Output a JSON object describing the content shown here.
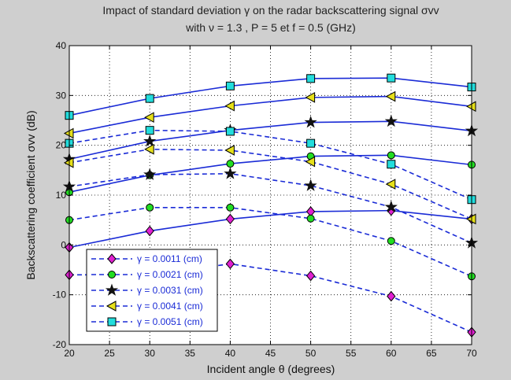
{
  "chart_data": {
    "type": "line",
    "title_line1": "Impact of standard deviation γ on the radar backscattering signal σvv",
    "title_line2": "with ν = 1.3 , P = 5 et f = 0.5 (GHz)",
    "xlabel": "Incident angle θ (degrees)",
    "ylabel": "Backscattering coefficient    σvv (dB)",
    "xlim": [
      20,
      70
    ],
    "ylim": [
      -20,
      40
    ],
    "xticks": [
      "20",
      "25",
      "30",
      "35",
      "40",
      "45",
      "50",
      "55",
      "60",
      "65",
      "70"
    ],
    "yticks": [
      "-20",
      "-10",
      "0",
      "10",
      "20",
      "30",
      "40"
    ],
    "grid": true,
    "legend_position": "bottom-left",
    "x": [
      20,
      30,
      40,
      50,
      60,
      70
    ],
    "line_color": "#1a2bd6",
    "series": [
      {
        "name": "γ = 0.0011 (cm)",
        "marker": "diamond",
        "marker_color": "#e020d0",
        "solid": [
          -0.5,
          2.8,
          5.2,
          6.7,
          6.9,
          5.2
        ],
        "dashed": [
          -6.0,
          -6.0,
          -3.8,
          -6.2,
          -10.3,
          -17.5
        ]
      },
      {
        "name": "γ = 0.0021 (cm)",
        "marker": "circle",
        "marker_color": "#22dd22",
        "solid": [
          10.6,
          14.0,
          16.3,
          17.8,
          18.0,
          16.1
        ],
        "dashed": [
          5.0,
          7.5,
          7.5,
          5.3,
          0.8,
          -6.3
        ]
      },
      {
        "name": "γ = 0.0031 (cm)",
        "marker": "star",
        "marker_color": "#111111",
        "solid": [
          17.2,
          20.8,
          23.0,
          24.6,
          24.8,
          22.9
        ],
        "dashed": [
          11.7,
          14.1,
          14.3,
          11.9,
          7.6,
          0.4
        ]
      },
      {
        "name": "γ = 0.0041 (cm)",
        "marker": "triangle-left",
        "marker_color": "#e6e01a",
        "solid": [
          22.4,
          25.6,
          27.9,
          29.6,
          29.8,
          27.8
        ],
        "dashed": [
          16.5,
          19.2,
          19.0,
          16.7,
          12.2,
          5.2
        ]
      },
      {
        "name": "γ = 0.0051 (cm)",
        "marker": "square",
        "marker_color": "#22dddd",
        "solid": [
          26.0,
          29.4,
          31.9,
          33.4,
          33.5,
          31.7
        ],
        "dashed": [
          20.4,
          23.0,
          22.8,
          20.4,
          16.2,
          9.1
        ]
      }
    ]
  }
}
